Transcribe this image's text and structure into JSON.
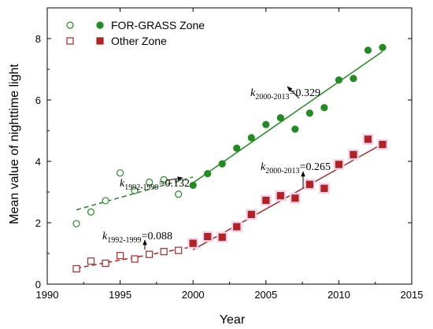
{
  "chart_data": {
    "type": "scatter",
    "xlabel": "Year",
    "ylabel": "Mean value of nighttime light",
    "xlim": [
      1990,
      2015
    ],
    "ylim": [
      0,
      9
    ],
    "xticks": [
      1990,
      1995,
      2000,
      2005,
      2010,
      2015
    ],
    "yticks": [
      0,
      2,
      4,
      6,
      8
    ],
    "grid": false,
    "legend_position": "top-left",
    "series": [
      {
        "name": "FOR-GRASS Zone",
        "color": "#228B22",
        "marker": "circle",
        "points": [
          [
            1992,
            1.97
          ],
          [
            1993,
            2.35
          ],
          [
            1994,
            2.72
          ],
          [
            1995,
            3.62
          ],
          [
            1996,
            3.05
          ],
          [
            1997,
            3.32
          ],
          [
            1998,
            3.4
          ],
          [
            1999,
            2.93
          ],
          [
            2000,
            3.22
          ],
          [
            2001,
            3.6
          ],
          [
            2002,
            3.92
          ],
          [
            2003,
            4.43
          ],
          [
            2004,
            4.77
          ],
          [
            2005,
            5.2
          ],
          [
            2006,
            5.42
          ],
          [
            2007,
            5.05
          ],
          [
            2008,
            5.57
          ],
          [
            2009,
            5.75
          ],
          [
            2010,
            6.65
          ],
          [
            2011,
            6.7
          ],
          [
            2012,
            7.62
          ],
          [
            2013,
            7.71
          ]
        ],
        "trend_early": {
          "x": [
            1992,
            2000
          ],
          "y": [
            2.42,
            3.49
          ],
          "k": "0.132"
        },
        "trend_late": {
          "x": [
            2000,
            2013
          ],
          "y": [
            3.3,
            7.58
          ],
          "k": "0.329"
        }
      },
      {
        "name": "Other Zone",
        "color": "#B22222",
        "marker": "square",
        "points": [
          [
            1992,
            0.5
          ],
          [
            1993,
            0.75
          ],
          [
            1994,
            0.68
          ],
          [
            1995,
            0.93
          ],
          [
            1996,
            0.82
          ],
          [
            1997,
            0.97
          ],
          [
            1998,
            1.06
          ],
          [
            1999,
            1.1
          ],
          [
            2000,
            1.33
          ],
          [
            2001,
            1.55
          ],
          [
            2002,
            1.53
          ],
          [
            2003,
            1.87
          ],
          [
            2004,
            2.27
          ],
          [
            2005,
            2.73
          ],
          [
            2006,
            2.88
          ],
          [
            2007,
            2.8
          ],
          [
            2008,
            3.25
          ],
          [
            2009,
            3.12
          ],
          [
            2010,
            3.9
          ],
          [
            2011,
            4.22
          ],
          [
            2012,
            4.72
          ],
          [
            2013,
            4.55
          ]
        ],
        "trend_early": {
          "x": [
            1992,
            2000
          ],
          "y": [
            0.52,
            1.22
          ],
          "k": "0.088"
        },
        "trend_late": {
          "x": [
            2000,
            2013
          ],
          "y": [
            1.12,
            4.57
          ],
          "k": "0.265"
        }
      }
    ],
    "annotations": [
      {
        "k_label": "k",
        "sub": "2000-2013",
        "value": "=0.329",
        "series": 0
      },
      {
        "k_label": "k",
        "sub": "1992-1999",
        "value": "=0.132",
        "series": 0
      },
      {
        "k_label": "k",
        "sub": "2000-2013",
        "value": "=0.265",
        "series": 1
      },
      {
        "k_label": "k",
        "sub": "1992-1999",
        "value": "=0.088",
        "series": 1
      }
    ]
  }
}
